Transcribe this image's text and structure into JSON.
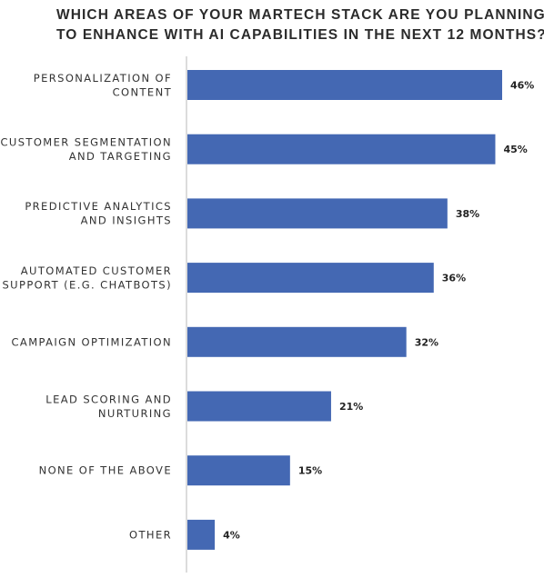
{
  "chart_data": {
    "type": "bar",
    "orientation": "horizontal",
    "title_lines": [
      "WHICH AREAS OF YOUR MARTECH STACK ARE YOU PLANNING",
      "TO ENHANCE WITH AI CAPABILITIES IN THE NEXT 12 MONTHS?"
    ],
    "categories": [
      [
        "PERSONALIZATION OF",
        "CONTENT"
      ],
      [
        "CUSTOMER SEGMENTATION",
        "AND TARGETING"
      ],
      [
        "PREDICTIVE ANALYTICS",
        "AND INSIGHTS"
      ],
      [
        "AUTOMATED CUSTOMER",
        "SUPPORT (E.G. CHATBOTS)"
      ],
      [
        "CAMPAIGN OPTIMIZATION"
      ],
      [
        "LEAD SCORING AND",
        "NURTURING"
      ],
      [
        "NONE OF THE ABOVE"
      ],
      [
        "OTHER"
      ]
    ],
    "values": [
      46,
      45,
      38,
      36,
      32,
      21,
      15,
      4
    ],
    "value_labels": [
      "46%",
      "45%",
      "38%",
      "36%",
      "32%",
      "21%",
      "15%",
      "4%"
    ],
    "unit": "%",
    "xlim": [
      0,
      46
    ],
    "grid": false,
    "bar_color": "#4468b3"
  }
}
